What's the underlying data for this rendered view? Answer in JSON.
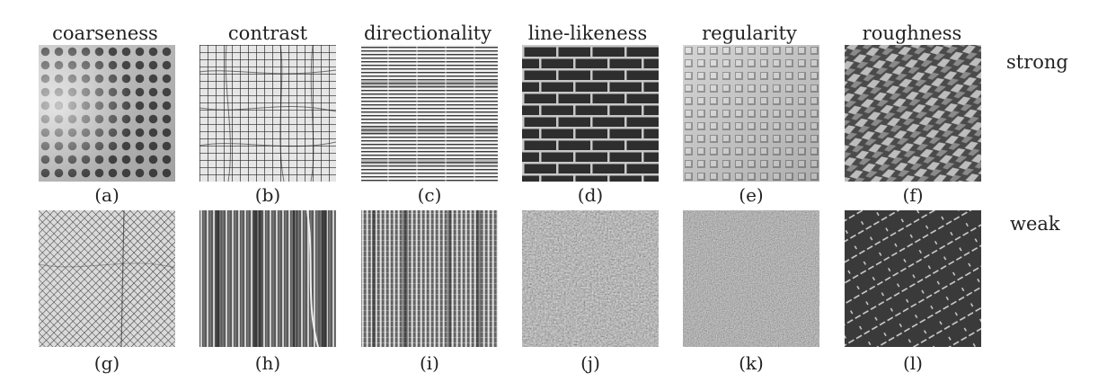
{
  "columns": [
    "coarseness",
    "contrast",
    "directionality",
    "line-likeness",
    "regularity",
    "roughness"
  ],
  "rows": {
    "strong": "strong",
    "weak": "weak"
  },
  "captions_top": [
    "(a)",
    "(b)",
    "(c)",
    "(d)",
    "(e)",
    "(f)"
  ],
  "captions_bottom": [
    "(g)",
    "(h)",
    "(i)",
    "(j)",
    "(k)",
    "(l)"
  ],
  "textures": [
    {
      "id": "a",
      "pattern": "coarse-dot-grid"
    },
    {
      "id": "b",
      "pattern": "irregular-mesh"
    },
    {
      "id": "c",
      "pattern": "horizontal-lines"
    },
    {
      "id": "d",
      "pattern": "brick-wall"
    },
    {
      "id": "e",
      "pattern": "woven-squares"
    },
    {
      "id": "f",
      "pattern": "rough-diagonal-weave"
    },
    {
      "id": "g",
      "pattern": "fine-diamond-mesh"
    },
    {
      "id": "h",
      "pattern": "vertical-wood-grain"
    },
    {
      "id": "i",
      "pattern": "vertical-streaks"
    },
    {
      "id": "j",
      "pattern": "speckled-noise"
    },
    {
      "id": "k",
      "pattern": "fine-noise"
    },
    {
      "id": "l",
      "pattern": "diagonal-dashes"
    }
  ]
}
